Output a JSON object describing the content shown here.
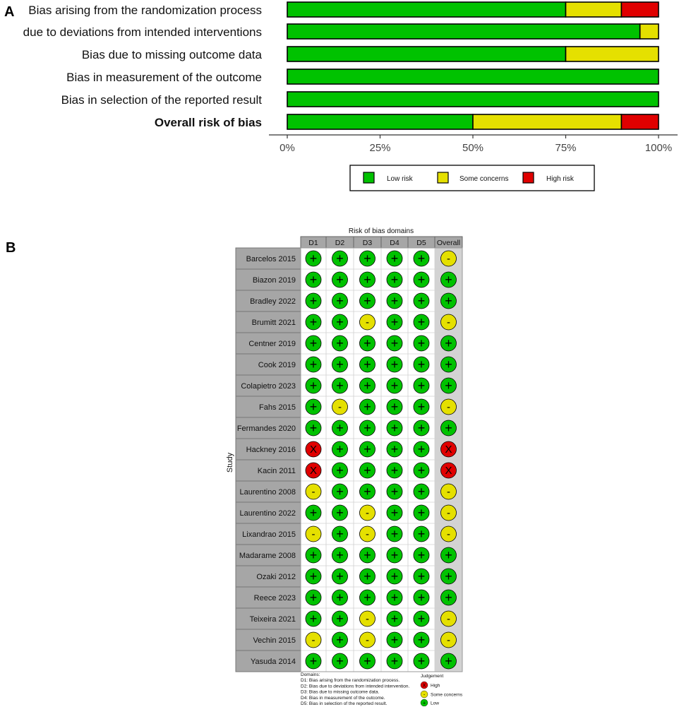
{
  "panel_a_label": "A",
  "panel_b_label": "B",
  "chart_data": [
    {
      "type": "bar",
      "orientation": "horizontal",
      "stacked": true,
      "categories": [
        "Bias arising from the randomization process",
        "due to deviations from intended interventions",
        "Bias due to missing outcome data",
        "Bias in measurement of the outcome",
        "Bias in selection of the reported result",
        "Overall risk of bias"
      ],
      "bold_categories": [
        "Overall risk of bias"
      ],
      "series": [
        {
          "name": "Low risk",
          "color": "#00c200",
          "values": [
            75,
            95,
            75,
            100,
            100,
            50
          ]
        },
        {
          "name": "Some concerns",
          "color": "#e5e000",
          "values": [
            15,
            5,
            25,
            0,
            0,
            40
          ]
        },
        {
          "name": "High risk",
          "color": "#e00000",
          "values": [
            10,
            0,
            0,
            0,
            0,
            10
          ]
        }
      ],
      "xlim": [
        0,
        100
      ],
      "xticks": [
        "0%",
        "25%",
        "50%",
        "75%",
        "100%"
      ],
      "legend_position": "bottom"
    },
    {
      "type": "table",
      "title": "Risk of bias domains",
      "row_axis_label": "Study",
      "columns": [
        "D1",
        "D2",
        "D3",
        "D4",
        "D5",
        "Overall"
      ],
      "studies": [
        "Barcelos 2015",
        "Biazon 2019",
        "Bradley 2022",
        "Brumitt 2021",
        "Centner 2019",
        "Cook 2019",
        "Colapietro 2023",
        "Fahs 2015",
        "Fermandes 2020",
        "Hackney 2016",
        "Kacin 2011",
        "Laurentino 2008",
        "Laurentino 2022",
        "Lixandrao 2015",
        "Madarame 2008",
        "Ozaki 2012",
        "Reece 2023",
        "Teixeira 2021",
        "Vechin 2015",
        "Yasuda 2014"
      ],
      "judgements": [
        [
          "low",
          "low",
          "low",
          "low",
          "low",
          "some"
        ],
        [
          "low",
          "low",
          "low",
          "low",
          "low",
          "low"
        ],
        [
          "low",
          "low",
          "low",
          "low",
          "low",
          "low"
        ],
        [
          "low",
          "low",
          "some",
          "low",
          "low",
          "some"
        ],
        [
          "low",
          "low",
          "low",
          "low",
          "low",
          "low"
        ],
        [
          "low",
          "low",
          "low",
          "low",
          "low",
          "low"
        ],
        [
          "low",
          "low",
          "low",
          "low",
          "low",
          "low"
        ],
        [
          "low",
          "some",
          "low",
          "low",
          "low",
          "some"
        ],
        [
          "low",
          "low",
          "low",
          "low",
          "low",
          "low"
        ],
        [
          "high",
          "low",
          "low",
          "low",
          "low",
          "high"
        ],
        [
          "high",
          "low",
          "low",
          "low",
          "low",
          "high"
        ],
        [
          "some",
          "low",
          "low",
          "low",
          "low",
          "some"
        ],
        [
          "low",
          "low",
          "some",
          "low",
          "low",
          "some"
        ],
        [
          "some",
          "low",
          "some",
          "low",
          "low",
          "some"
        ],
        [
          "low",
          "low",
          "low",
          "low",
          "low",
          "low"
        ],
        [
          "low",
          "low",
          "low",
          "low",
          "low",
          "low"
        ],
        [
          "low",
          "low",
          "low",
          "low",
          "low",
          "low"
        ],
        [
          "low",
          "low",
          "some",
          "low",
          "low",
          "some"
        ],
        [
          "some",
          "low",
          "some",
          "low",
          "low",
          "some"
        ],
        [
          "low",
          "low",
          "low",
          "low",
          "low",
          "low"
        ]
      ],
      "symbols": {
        "low": "+",
        "some": "-",
        "high": "X"
      },
      "colors": {
        "low": "#00c200",
        "some": "#e5e000",
        "high": "#e00000"
      },
      "domains_title": "Domains:",
      "domains": [
        "D1: Bias arising from the randomization process.",
        "D2: Bias due to deviations from intended intervention.",
        "D3: Bias due to missing outcome data.",
        "D4: Bias in measurement of the outcome.",
        "D5: Bias in selection of the reported result."
      ],
      "judgement_title": "Judgement",
      "judgement_legend": [
        {
          "key": "high",
          "label": "High"
        },
        {
          "key": "some",
          "label": "Some concerns"
        },
        {
          "key": "low",
          "label": "Low"
        }
      ]
    }
  ]
}
